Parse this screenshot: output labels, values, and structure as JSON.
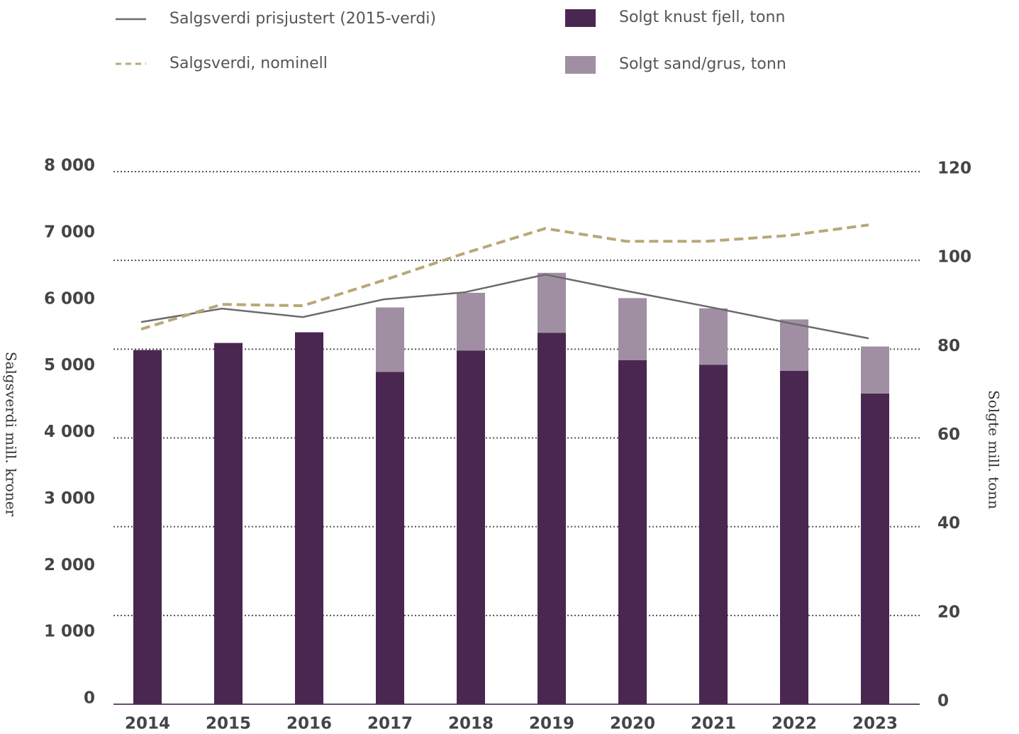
{
  "chart_data": {
    "type": "bar",
    "categories": [
      "2014",
      "2015",
      "2016",
      "2017",
      "2018",
      "2019",
      "2020",
      "2021",
      "2022",
      "2023"
    ],
    "series": [
      {
        "name": "Salgsverdi prisjustert (2015-verdi)",
        "type": "line",
        "color": "#6b6b6b",
        "dashed": false,
        "axis": "y",
        "values": [
          5740,
          5943,
          5815,
          6081,
          6187,
          6454,
          6209,
          5974,
          5730,
          5495
        ]
      },
      {
        "name": "Salgsverdi, nominell",
        "type": "line",
        "color": "#b8a878",
        "dashed": true,
        "axis": "y",
        "values": [
          5634,
          6006,
          5985,
          6368,
          6773,
          7146,
          6954,
          6954,
          7039,
          7199
        ]
      },
      {
        "name": "Solgt knust fjell, tonn",
        "type": "bar",
        "color": "#4a2750",
        "axis": "y2",
        "values": [
          79.8,
          81.4,
          83.8,
          74.9,
          79.7,
          83.7,
          77.5,
          76.5,
          75.1,
          70.0
        ]
      },
      {
        "name": "Solgt sand/grus, tonn",
        "type": "bar",
        "color": "#a08fa3",
        "axis": "y2",
        "values": [
          null,
          null,
          null,
          14.5,
          13.0,
          13.5,
          14.0,
          12.7,
          11.6,
          10.6
        ]
      }
    ],
    "y_label": "Salgsverdi mill. kroner",
    "y2_label": "Solgte mill. tonn",
    "ylim": [
      0,
      8000
    ],
    "yticks": [
      0,
      {
        "value": 1000,
        "label": "1 000"
      },
      {
        "value": 2000,
        "label": "2 000"
      },
      {
        "value": 3000,
        "label": "3 000"
      },
      {
        "value": 4000,
        "label": "4 000"
      },
      {
        "value": 5000,
        "label": "5 000"
      },
      {
        "value": 6000,
        "label": "6 000"
      },
      {
        "value": 7000,
        "label": "7 000"
      },
      {
        "value": 8000,
        "label": "8 000"
      }
    ],
    "y2lim": [
      0,
      120
    ],
    "y2ticks": [
      0,
      20,
      40,
      60,
      80,
      100,
      120
    ],
    "grid": true
  }
}
